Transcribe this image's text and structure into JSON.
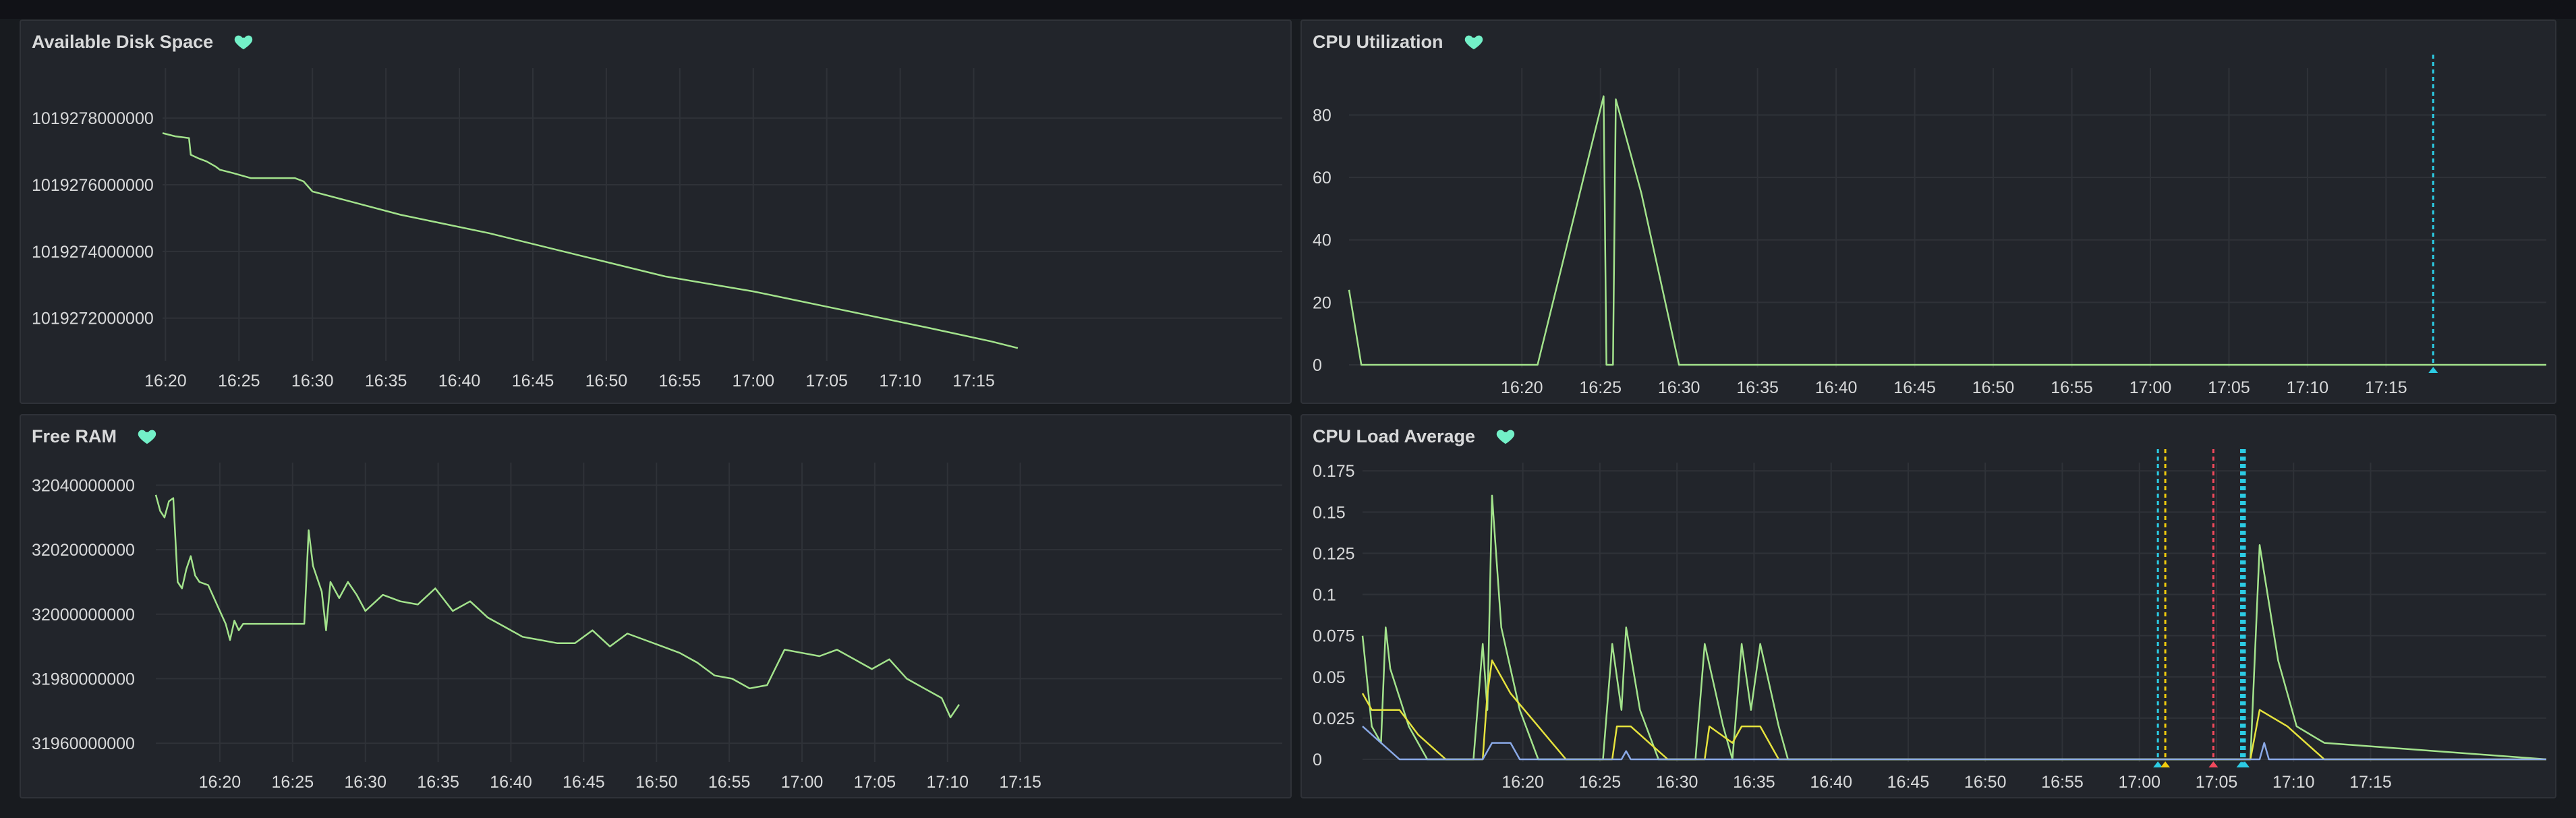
{
  "colors": {
    "series_green": "#a3e38c",
    "series_yellow": "#e6e33d",
    "series_blue": "#8aa9e6",
    "annotation_cyan": "#2ccce4",
    "annotation_yellow": "#f2cc0c",
    "annotation_red": "#f2495c",
    "heart": "#73f0c8"
  },
  "panels": {
    "disk": {
      "title": "Available Disk Space",
      "icon": "heart-icon"
    },
    "cpu": {
      "title": "CPU Utilization",
      "icon": "heart-icon"
    },
    "ram": {
      "title": "Free RAM",
      "icon": "heart-icon"
    },
    "load": {
      "title": "CPU Load Average",
      "icon": "heart-icon"
    }
  },
  "chart_data": [
    {
      "id": "disk",
      "type": "line",
      "title": "Available Disk Space",
      "x_ticks": [
        "16:20",
        "16:25",
        "16:30",
        "16:35",
        "16:40",
        "16:45",
        "16:50",
        "16:55",
        "17:00",
        "17:05",
        "17:10",
        "17:15"
      ],
      "y_ticks": [
        "1019278000000",
        "1019276000000",
        "1019274000000",
        "1019272000000"
      ],
      "y_tick_values": [
        1019278000000,
        1019276000000,
        1019274000000,
        1019272000000
      ],
      "x_range": [
        16.33,
        17.6
      ],
      "y_range": [
        1019270800000,
        1019279500000
      ],
      "grid": true,
      "series": [
        {
          "color": "#a3e38c",
          "points": [
            [
              16.33,
              1019277550000
            ],
            [
              16.345,
              1019277450000
            ],
            [
              16.36,
              1019277400000
            ],
            [
              16.362,
              1019276900000
            ],
            [
              16.37,
              1019276800000
            ],
            [
              16.38,
              1019276700000
            ],
            [
              16.39,
              1019276550000
            ],
            [
              16.395,
              1019276450000
            ],
            [
              16.41,
              1019276350000
            ],
            [
              16.43,
              1019276200000
            ],
            [
              16.45,
              1019276200000
            ],
            [
              16.47,
              1019276200000
            ],
            [
              16.48,
              1019276200000
            ],
            [
              16.49,
              1019276100000
            ],
            [
              16.5,
              1019275800000
            ],
            [
              16.6,
              1019275100000
            ],
            [
              16.7,
              1019274550000
            ],
            [
              16.8,
              1019273900000
            ],
            [
              16.9,
              1019273250000
            ],
            [
              17.0,
              1019272800000
            ],
            [
              17.1,
              1019272250000
            ],
            [
              17.2,
              1019271700000
            ],
            [
              17.27,
              1019271300000
            ],
            [
              17.3,
              1019271100000
            ]
          ]
        }
      ]
    },
    {
      "id": "cpu",
      "type": "line",
      "title": "CPU Utilization",
      "x_ticks": [
        "16:20",
        "16:25",
        "16:30",
        "16:35",
        "16:40",
        "16:45",
        "16:50",
        "16:55",
        "17:00",
        "17:05",
        "17:10",
        "17:15"
      ],
      "y_ticks": [
        "80",
        "60",
        "40",
        "20",
        "0"
      ],
      "y_tick_values": [
        80,
        60,
        40,
        20,
        0
      ],
      "x_range": [
        16.15,
        17.42
      ],
      "y_range": [
        0,
        95
      ],
      "grid": true,
      "annotations": [
        {
          "x": 17.3,
          "color": "#2ccce4"
        }
      ],
      "series": [
        {
          "color": "#a3e38c",
          "points": [
            [
              16.15,
              24
            ],
            [
              16.163,
              0
            ],
            [
              16.22,
              0
            ],
            [
              16.26,
              0
            ],
            [
              16.3,
              0
            ],
            [
              16.35,
              0
            ],
            [
              16.42,
              86
            ],
            [
              16.423,
              0
            ],
            [
              16.43,
              0
            ],
            [
              16.433,
              85
            ],
            [
              16.46,
              55
            ],
            [
              16.5,
              0
            ],
            [
              16.7,
              0
            ],
            [
              17.0,
              0
            ],
            [
              17.2,
              0
            ],
            [
              17.42,
              0
            ]
          ]
        }
      ]
    },
    {
      "id": "ram",
      "type": "line",
      "title": "Free RAM",
      "x_ticks": [
        "16:20",
        "16:25",
        "16:30",
        "16:35",
        "16:40",
        "16:45",
        "16:50",
        "16:55",
        "17:00",
        "17:05",
        "17:10",
        "17:15"
      ],
      "y_ticks": [
        "32040000000",
        "32020000000",
        "32000000000",
        "31980000000",
        "31960000000"
      ],
      "y_tick_values": [
        32040000000,
        32020000000,
        32000000000,
        31980000000,
        31960000000
      ],
      "x_range": [
        16.26,
        17.55
      ],
      "y_range": [
        31955000000,
        32047000000
      ],
      "grid": true,
      "series": [
        {
          "color": "#a3e38c",
          "points": [
            [
              16.26,
              32037000000
            ],
            [
              16.265,
              32032000000
            ],
            [
              16.27,
              32030000000
            ],
            [
              16.275,
              32035000000
            ],
            [
              16.28,
              32036000000
            ],
            [
              16.285,
              32010000000
            ],
            [
              16.29,
              32008000000
            ],
            [
              16.295,
              32014000000
            ],
            [
              16.3,
              32018000000
            ],
            [
              16.305,
              32012000000
            ],
            [
              16.31,
              32010000000
            ],
            [
              16.32,
              32009000000
            ],
            [
              16.33,
              32003000000
            ],
            [
              16.335,
              32000000000
            ],
            [
              16.34,
              31997000000
            ],
            [
              16.345,
              31992000000
            ],
            [
              16.35,
              31998000000
            ],
            [
              16.355,
              31995000000
            ],
            [
              16.36,
              31997000000
            ],
            [
              16.38,
              31997000000
            ],
            [
              16.41,
              31997000000
            ],
            [
              16.43,
              31997000000
            ],
            [
              16.435,
              32026000000
            ],
            [
              16.44,
              32015000000
            ],
            [
              16.45,
              32007000000
            ],
            [
              16.455,
              31995000000
            ],
            [
              16.46,
              32010000000
            ],
            [
              16.47,
              32005000000
            ],
            [
              16.48,
              32010000000
            ],
            [
              16.49,
              32006000000
            ],
            [
              16.5,
              32001000000
            ],
            [
              16.52,
              32006000000
            ],
            [
              16.54,
              32004000000
            ],
            [
              16.56,
              32003000000
            ],
            [
              16.58,
              32008000000
            ],
            [
              16.6,
              32001000000
            ],
            [
              16.62,
              32004000000
            ],
            [
              16.64,
              31999000000
            ],
            [
              16.66,
              31996000000
            ],
            [
              16.68,
              31993000000
            ],
            [
              16.7,
              31992000000
            ],
            [
              16.72,
              31991000000
            ],
            [
              16.74,
              31991000000
            ],
            [
              16.76,
              31995000000
            ],
            [
              16.78,
              31990000000
            ],
            [
              16.8,
              31994000000
            ],
            [
              16.82,
              31992000000
            ],
            [
              16.84,
              31990000000
            ],
            [
              16.86,
              31988000000
            ],
            [
              16.88,
              31985000000
            ],
            [
              16.9,
              31981000000
            ],
            [
              16.92,
              31980000000
            ],
            [
              16.94,
              31977000000
            ],
            [
              16.96,
              31978000000
            ],
            [
              16.98,
              31989000000
            ],
            [
              17.0,
              31988000000
            ],
            [
              17.02,
              31987000000
            ],
            [
              17.04,
              31989000000
            ],
            [
              17.06,
              31986000000
            ],
            [
              17.08,
              31983000000
            ],
            [
              17.1,
              31986000000
            ],
            [
              17.12,
              31980000000
            ],
            [
              17.14,
              31977000000
            ],
            [
              17.16,
              31974000000
            ],
            [
              17.17,
              31968000000
            ],
            [
              17.18,
              31972000000
            ]
          ]
        }
      ]
    },
    {
      "id": "load",
      "type": "line",
      "title": "CPU Load Average",
      "x_ticks": [
        "16:20",
        "16:25",
        "16:30",
        "16:35",
        "16:40",
        "16:45",
        "16:50",
        "16:55",
        "17:00",
        "17:05",
        "17:10",
        "17:15"
      ],
      "y_ticks": [
        "0.175",
        "0.15",
        "0.125",
        "0.1",
        "0.075",
        "0.05",
        "0.025",
        "0"
      ],
      "y_tick_values": [
        0.175,
        0.15,
        0.125,
        0.1,
        0.075,
        0.05,
        0.025,
        0
      ],
      "x_range": [
        16.16,
        17.44
      ],
      "y_range": [
        0,
        0.18
      ],
      "grid": true,
      "annotations": [
        {
          "x": 17.02,
          "color": "#2ccce4"
        },
        {
          "x": 17.028,
          "color": "#f2cc0c"
        },
        {
          "x": 17.08,
          "color": "#f2495c"
        },
        {
          "x": 17.11,
          "color": "#2ccce4"
        },
        {
          "x": 17.112,
          "color": "#2ccce4"
        },
        {
          "x": 17.114,
          "color": "#2ccce4"
        }
      ],
      "series": [
        {
          "color": "#a3e38c",
          "points": [
            [
              16.16,
              0.075
            ],
            [
              16.17,
              0.02
            ],
            [
              16.18,
              0.01
            ],
            [
              16.185,
              0.08
            ],
            [
              16.19,
              0.055
            ],
            [
              16.21,
              0.02
            ],
            [
              16.23,
              0
            ],
            [
              16.28,
              0
            ],
            [
              16.29,
              0.07
            ],
            [
              16.295,
              0.03
            ],
            [
              16.3,
              0.16
            ],
            [
              16.31,
              0.08
            ],
            [
              16.33,
              0.03
            ],
            [
              16.35,
              0
            ],
            [
              16.42,
              0
            ],
            [
              16.43,
              0.07
            ],
            [
              16.44,
              0.03
            ],
            [
              16.445,
              0.08
            ],
            [
              16.46,
              0.03
            ],
            [
              16.48,
              0
            ],
            [
              16.52,
              0
            ],
            [
              16.53,
              0.07
            ],
            [
              16.55,
              0.02
            ],
            [
              16.56,
              0
            ],
            [
              16.57,
              0.07
            ],
            [
              16.58,
              0.03
            ],
            [
              16.59,
              0.07
            ],
            [
              16.61,
              0.02
            ],
            [
              16.62,
              0
            ],
            [
              17.1,
              0
            ],
            [
              17.12,
              0
            ],
            [
              17.13,
              0.13
            ],
            [
              17.15,
              0.06
            ],
            [
              17.17,
              0.02
            ],
            [
              17.2,
              0.01
            ],
            [
              17.44,
              0
            ]
          ]
        },
        {
          "color": "#e6e33d",
          "points": [
            [
              16.16,
              0.04
            ],
            [
              16.17,
              0.03
            ],
            [
              16.2,
              0.03
            ],
            [
              16.22,
              0.015
            ],
            [
              16.25,
              0
            ],
            [
              16.29,
              0
            ],
            [
              16.295,
              0.04
            ],
            [
              16.3,
              0.06
            ],
            [
              16.32,
              0.04
            ],
            [
              16.35,
              0.02
            ],
            [
              16.38,
              0
            ],
            [
              16.43,
              0
            ],
            [
              16.435,
              0.02
            ],
            [
              16.45,
              0.02
            ],
            [
              16.47,
              0.01
            ],
            [
              16.49,
              0
            ],
            [
              16.53,
              0
            ],
            [
              16.535,
              0.02
            ],
            [
              16.56,
              0.01
            ],
            [
              16.57,
              0.02
            ],
            [
              16.59,
              0.02
            ],
            [
              16.61,
              0
            ],
            [
              17.12,
              0
            ],
            [
              17.13,
              0.03
            ],
            [
              17.16,
              0.02
            ],
            [
              17.18,
              0.01
            ],
            [
              17.2,
              0
            ],
            [
              17.44,
              0
            ]
          ]
        },
        {
          "color": "#8aa9e6",
          "points": [
            [
              16.16,
              0.02
            ],
            [
              16.18,
              0.01
            ],
            [
              16.2,
              0
            ],
            [
              16.29,
              0
            ],
            [
              16.3,
              0.01
            ],
            [
              16.32,
              0.01
            ],
            [
              16.33,
              0
            ],
            [
              16.44,
              0
            ],
            [
              16.445,
              0.005
            ],
            [
              16.45,
              0
            ],
            [
              17.13,
              0
            ],
            [
              17.135,
              0.01
            ],
            [
              17.14,
              0
            ],
            [
              17.44,
              0
            ]
          ]
        }
      ]
    }
  ]
}
